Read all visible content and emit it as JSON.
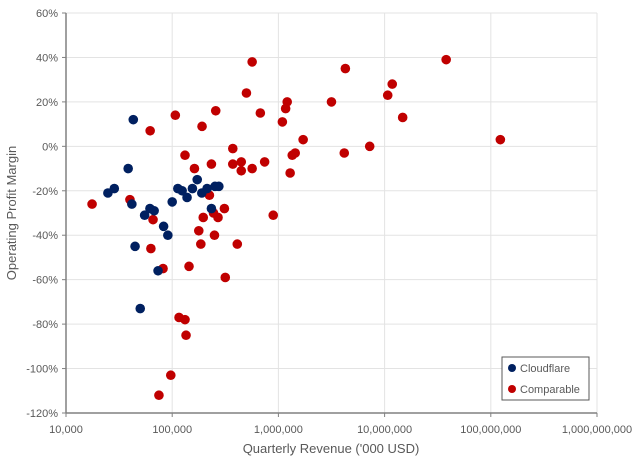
{
  "chart_data": {
    "type": "scatter",
    "title": "",
    "xlabel": "Quarterly Revenue ('000 USD)",
    "ylabel": "Operating Profit Margin",
    "x_scale": "log",
    "xlim": [
      10000,
      1000000000
    ],
    "ylim": [
      -120,
      60
    ],
    "x_ticks": [
      "10,000",
      "100,000",
      "1,000,000",
      "10,000,000",
      "100,000,000",
      "1,000,000,000"
    ],
    "x_tick_values": [
      10000,
      100000,
      1000000,
      10000000,
      100000000,
      1000000000
    ],
    "y_ticks": [
      "60%",
      "40%",
      "20%",
      "0%",
      "-20%",
      "-40%",
      "-60%",
      "-80%",
      "-100%",
      "-120%"
    ],
    "y_tick_values": [
      60,
      40,
      20,
      0,
      -20,
      -40,
      -60,
      -80,
      -100,
      -120
    ],
    "grid": true,
    "legend_position": "bottom-right",
    "series": [
      {
        "name": "Cloudflare",
        "color": "#002060",
        "points": [
          [
            43000,
            12
          ],
          [
            38500,
            -10
          ],
          [
            24800,
            -21
          ],
          [
            28500,
            -19
          ],
          [
            41700,
            -26
          ],
          [
            55000,
            -31
          ],
          [
            61700,
            -28
          ],
          [
            67600,
            -29
          ],
          [
            83000,
            -36
          ],
          [
            91000,
            -40
          ],
          [
            100000,
            -25
          ],
          [
            44700,
            -45
          ],
          [
            73600,
            -56
          ],
          [
            50000,
            -73
          ],
          [
            113000,
            -19
          ],
          [
            124000,
            -20
          ],
          [
            138000,
            -23
          ],
          [
            155000,
            -19
          ],
          [
            172000,
            -15
          ],
          [
            190000,
            -21
          ],
          [
            213000,
            -19
          ],
          [
            234000,
            -28
          ],
          [
            253000,
            -18
          ],
          [
            275000,
            -18
          ]
        ]
      },
      {
        "name": "Comparable",
        "color": "#C00000",
        "points": [
          [
            17600,
            -26
          ],
          [
            62000,
            7
          ],
          [
            40000,
            -24
          ],
          [
            66000,
            -33
          ],
          [
            107000,
            14
          ],
          [
            132000,
            -4
          ],
          [
            162000,
            -10
          ],
          [
            191000,
            9
          ],
          [
            224000,
            -22
          ],
          [
            234000,
            -8
          ],
          [
            257000,
            16
          ],
          [
            196000,
            -32
          ],
          [
            245000,
            -30
          ],
          [
            270000,
            -32
          ],
          [
            310000,
            -28
          ],
          [
            372000,
            -1
          ],
          [
            372000,
            -8
          ],
          [
            447000,
            -7
          ],
          [
            447000,
            -11
          ],
          [
            500000,
            24
          ],
          [
            566000,
            38
          ],
          [
            566000,
            -10
          ],
          [
            676000,
            15
          ],
          [
            742000,
            -7
          ],
          [
            894000,
            -31
          ],
          [
            1090000,
            11
          ],
          [
            1170000,
            17
          ],
          [
            1210000,
            20
          ],
          [
            1290000,
            -12
          ],
          [
            1350000,
            -4
          ],
          [
            1440000,
            -3
          ],
          [
            1710000,
            3
          ],
          [
            178000,
            -38
          ],
          [
            250000,
            -40
          ],
          [
            186000,
            -44
          ],
          [
            410000,
            -44
          ],
          [
            63000,
            -46
          ],
          [
            82000,
            -55
          ],
          [
            144000,
            -54
          ],
          [
            316000,
            -59
          ],
          [
            116000,
            -77
          ],
          [
            132000,
            -78
          ],
          [
            135000,
            -85
          ],
          [
            97000,
            -103
          ],
          [
            75000,
            -112
          ],
          [
            4270000,
            35
          ],
          [
            38000000,
            39
          ],
          [
            11800000,
            28
          ],
          [
            10700000,
            23
          ],
          [
            3160000,
            20
          ],
          [
            14800000,
            13
          ],
          [
            7240000,
            0
          ],
          [
            4170000,
            -3
          ],
          [
            123000000,
            3
          ]
        ]
      }
    ]
  }
}
